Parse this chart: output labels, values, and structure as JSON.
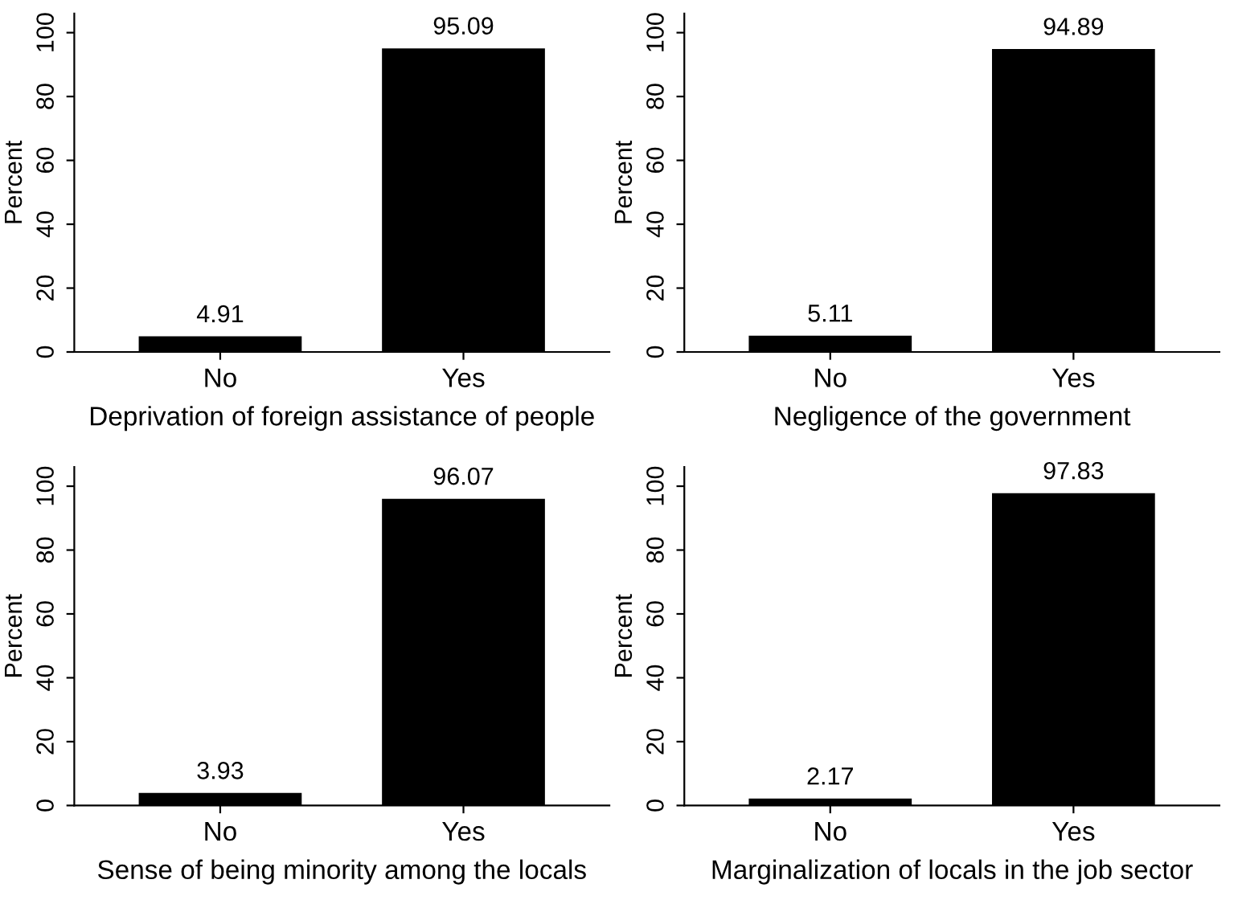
{
  "chart_data": [
    {
      "type": "bar",
      "xlabel": "Deprivation of foreign assistance of people",
      "ylabel": "Percent",
      "categories": [
        "No",
        "Yes"
      ],
      "values": [
        4.91,
        95.09
      ],
      "color": "#000000",
      "ylim": [
        0,
        106
      ],
      "yticks": [
        0,
        20,
        40,
        60,
        80,
        100
      ],
      "data_labels": true,
      "grid": false,
      "legend": false
    },
    {
      "type": "bar",
      "xlabel": "Negligence of the government",
      "ylabel": "Percent",
      "categories": [
        "No",
        "Yes"
      ],
      "values": [
        5.11,
        94.89
      ],
      "color": "#000000",
      "ylim": [
        0,
        106
      ],
      "yticks": [
        0,
        20,
        40,
        60,
        80,
        100
      ],
      "data_labels": true,
      "grid": false,
      "legend": false
    },
    {
      "type": "bar",
      "xlabel": "Sense of being minority among the locals",
      "ylabel": "Percent",
      "categories": [
        "No",
        "Yes"
      ],
      "values": [
        3.93,
        96.07
      ],
      "color": "#000000",
      "ylim": [
        0,
        106
      ],
      "yticks": [
        0,
        20,
        40,
        60,
        80,
        100
      ],
      "data_labels": true,
      "grid": false,
      "legend": false
    },
    {
      "type": "bar",
      "xlabel": "Marginalization of locals in the job sector",
      "ylabel": "Percent",
      "categories": [
        "No",
        "Yes"
      ],
      "values": [
        2.17,
        97.83
      ],
      "color": "#000000",
      "ylim": [
        0,
        106
      ],
      "yticks": [
        0,
        20,
        40,
        60,
        80,
        100
      ],
      "data_labels": true,
      "grid": false,
      "legend": false
    }
  ]
}
